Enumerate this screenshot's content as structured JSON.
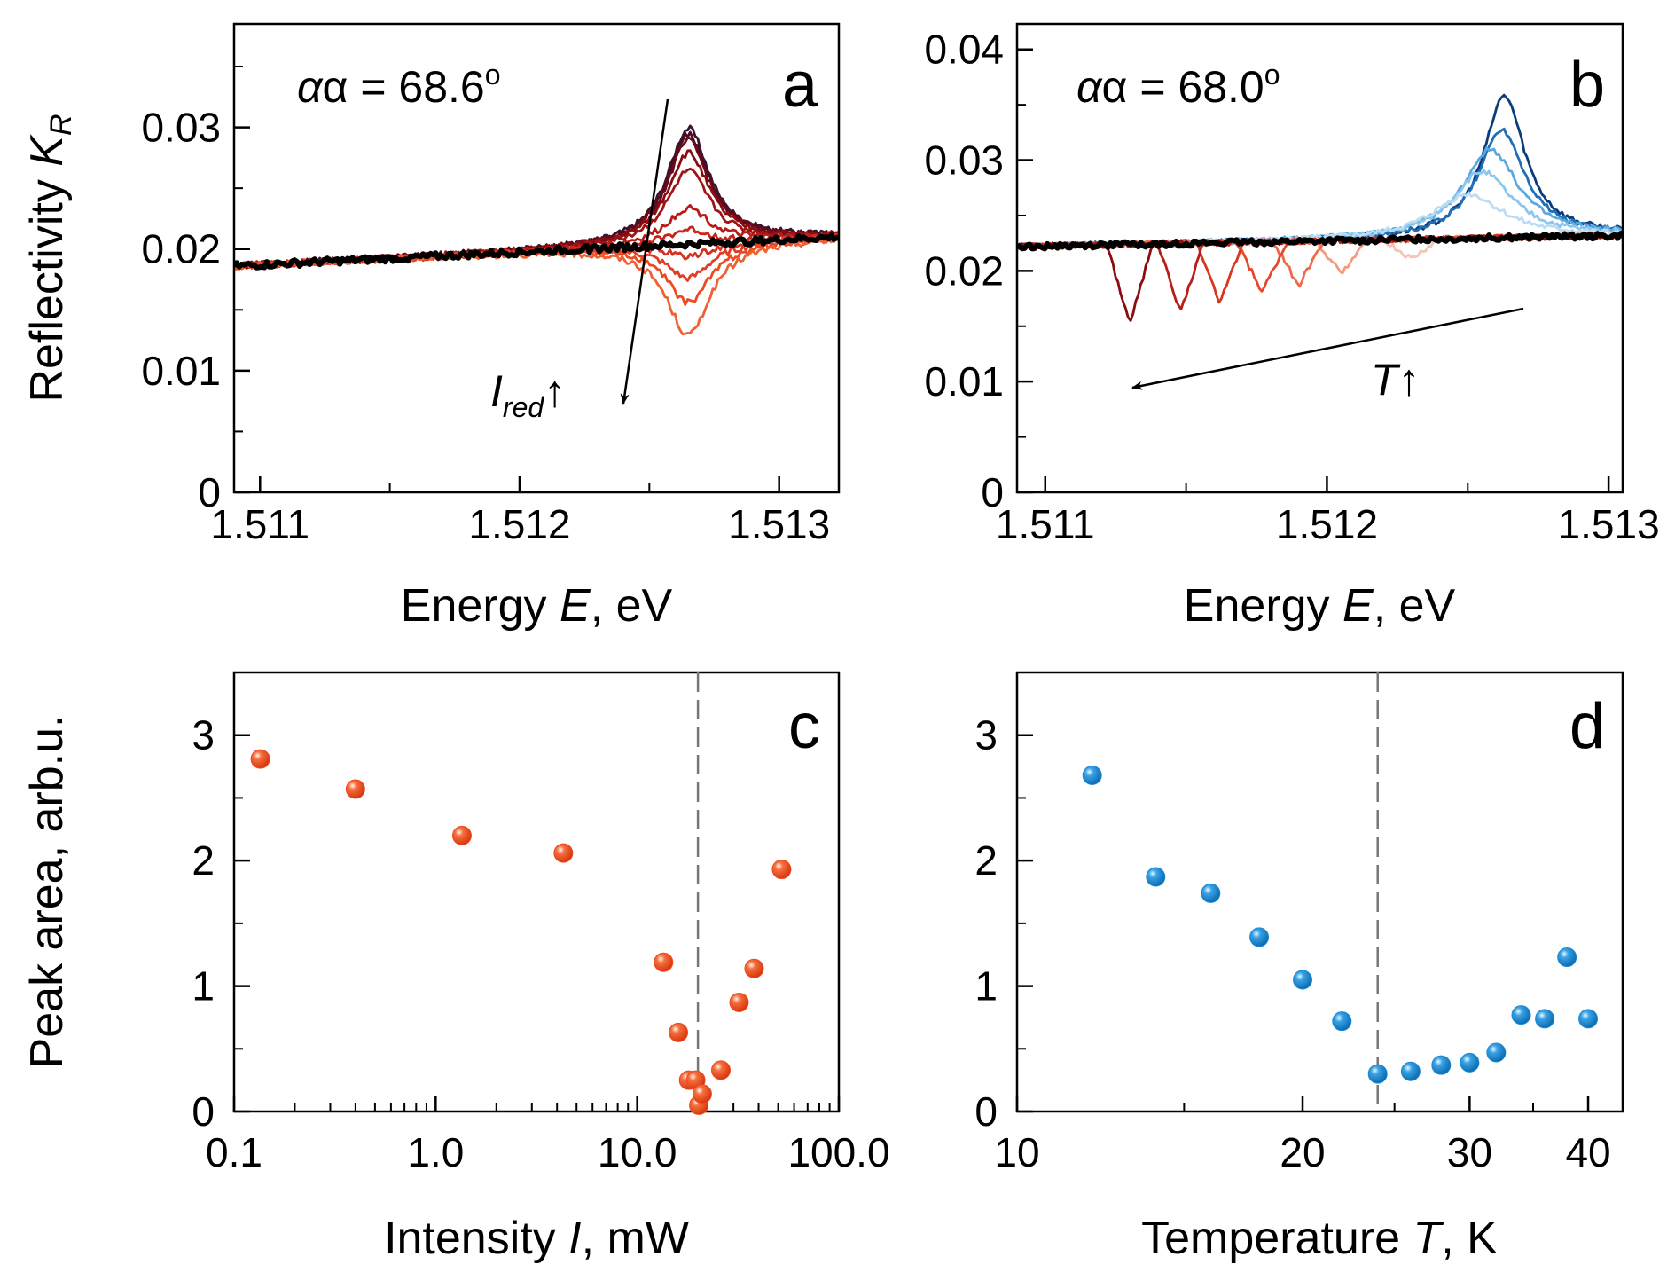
{
  "chart_data": [
    {
      "panel": "a",
      "type": "line",
      "annotation": "α = 68.6",
      "annotation_sup": "o",
      "arrow_label_main": "I",
      "arrow_label_sub": "red",
      "arrow_label_arrow": "↑",
      "xlabel_pre": "Energy ",
      "xlabel_var": "E",
      "xlabel_post": ", eV",
      "ylabel_pre": "Reflectivity ",
      "ylabel_var": "K",
      "ylabel_sub": "R",
      "xlim": [
        1.5109,
        1.51323
      ],
      "ylim": [
        0,
        0.0385
      ],
      "xticks": [
        1.511,
        1.512,
        1.513
      ],
      "xtick_labels": [
        "1.511",
        "1.512",
        "1.513"
      ],
      "yticks": [
        0,
        0.01,
        0.02,
        0.03
      ],
      "ytick_labels": [
        "0",
        "0.01",
        "0.02",
        "0.03"
      ],
      "base": {
        "x0": 1.5109,
        "x1": 1.51323,
        "y0": 0.0186,
        "y1": 0.021
      },
      "peak_center": 1.51265,
      "peak_width": 0.0001,
      "series": [
        {
          "amp": 0.0095,
          "color": "#3a1232"
        },
        {
          "amp": 0.009,
          "color": "#4a0f22"
        },
        {
          "amp": 0.0085,
          "color": "#6b0a16"
        },
        {
          "amp": 0.0075,
          "color": "#8a0c12"
        },
        {
          "amp": 0.006,
          "color": "#a11414"
        },
        {
          "amp": 0.003,
          "color": "#b81c18"
        },
        {
          "amp": 0.0012,
          "color": "#c8241c"
        },
        {
          "amp": -0.001,
          "color": "#d63020"
        },
        {
          "amp": -0.0028,
          "color": "#e23c22"
        },
        {
          "amp": -0.0048,
          "color": "#ec4a22"
        },
        {
          "amp": -0.0075,
          "color": "#f06030"
        },
        {
          "amp": 0.0,
          "color": "#000000",
          "bold": true
        }
      ]
    },
    {
      "panel": "b",
      "type": "line",
      "annotation": "α = 68.0",
      "annotation_sup": "o",
      "arrow_label_main": "T",
      "arrow_label_arrow": "↑",
      "xlabel_pre": "Energy ",
      "xlabel_var": "E",
      "xlabel_post": ", eV",
      "xlim": [
        1.5109,
        1.51305
      ],
      "ylim": [
        0,
        0.0423
      ],
      "xticks": [
        1.511,
        1.512,
        1.513
      ],
      "xtick_labels": [
        "1.511",
        "1.512",
        "1.513"
      ],
      "yticks": [
        0,
        0.01,
        0.02,
        0.03,
        0.04
      ],
      "ytick_labels": [
        "0",
        "0.01",
        "0.02",
        "0.03",
        "0.04"
      ],
      "base": {
        "x0": 1.5109,
        "x1": 1.51305,
        "y0": 0.0222,
        "y1": 0.0232
      },
      "series": [
        {
          "center": 1.51263,
          "amp": 0.0128,
          "width": 9e-05,
          "color": "#0a3d7a"
        },
        {
          "center": 1.51262,
          "amp": 0.0098,
          "width": 0.0001,
          "color": "#1f6fb8"
        },
        {
          "center": 1.51258,
          "amp": 0.008,
          "width": 0.00012,
          "color": "#5aa8e0"
        },
        {
          "center": 1.51255,
          "amp": 0.006,
          "width": 0.00013,
          "color": "#8cc6ee"
        },
        {
          "center": 1.5125,
          "amp": 0.004,
          "width": 0.00015,
          "color": "#bcdcf4"
        },
        {
          "center": 1.5123,
          "amp": -0.0018,
          "width": 0.0001,
          "color": "#f6c4b4"
        },
        {
          "center": 1.51205,
          "amp": -0.003,
          "width": 9e-05,
          "color": "#f39a80"
        },
        {
          "center": 1.5119,
          "amp": -0.004,
          "width": 9e-05,
          "color": "#ee6a4a"
        },
        {
          "center": 1.51177,
          "amp": -0.0045,
          "width": 9e-05,
          "color": "#e64a2e"
        },
        {
          "center": 1.51162,
          "amp": -0.0055,
          "width": 8e-05,
          "color": "#d8361f"
        },
        {
          "center": 1.51148,
          "amp": -0.0063,
          "width": 8e-05,
          "color": "#b81e16"
        },
        {
          "center": 1.5113,
          "amp": -0.0073,
          "width": 8e-05,
          "color": "#8c0c10"
        },
        {
          "center": 1.5122,
          "amp": 0.0,
          "width": 0.0001,
          "color": "#000000",
          "bold": true
        }
      ]
    },
    {
      "panel": "c",
      "type": "scatter",
      "xscale": "log",
      "xlabel_pre": "Intensity ",
      "xlabel_var": "I",
      "xlabel_post": ", mW",
      "ylabel": "Peak area, arb.u.",
      "xlim": [
        0.1,
        100
      ],
      "ylim": [
        0,
        3.5
      ],
      "xticks": [
        0.1,
        1,
        10,
        100
      ],
      "xtick_labels": [
        "0.1",
        "1.0",
        "10.0",
        "100.0"
      ],
      "yticks": [
        0,
        1,
        2,
        3
      ],
      "ytick_labels": [
        "0",
        "1",
        "2",
        "3"
      ],
      "vline": 20,
      "color": "#f04a22",
      "points": [
        {
          "x": 0.135,
          "y": 2.81
        },
        {
          "x": 0.4,
          "y": 2.57
        },
        {
          "x": 1.35,
          "y": 2.2
        },
        {
          "x": 4.3,
          "y": 2.06
        },
        {
          "x": 13.5,
          "y": 1.19
        },
        {
          "x": 16.0,
          "y": 0.63
        },
        {
          "x": 18.0,
          "y": 0.25
        },
        {
          "x": 19.5,
          "y": 0.25
        },
        {
          "x": 20.2,
          "y": 0.05
        },
        {
          "x": 21.0,
          "y": 0.14
        },
        {
          "x": 26.0,
          "y": 0.33
        },
        {
          "x": 32.0,
          "y": 0.87
        },
        {
          "x": 38.0,
          "y": 1.14
        },
        {
          "x": 52.0,
          "y": 1.93
        }
      ]
    },
    {
      "panel": "d",
      "type": "scatter",
      "xscale": "log",
      "xlabel_pre": "Temperature ",
      "xlabel_var": "T",
      "xlabel_post": ", K",
      "xlim": [
        10,
        43.5
      ],
      "ylim": [
        0,
        3.5
      ],
      "xticks": [
        10,
        20,
        30,
        40
      ],
      "xtick_labels": [
        "10",
        "20",
        "30",
        "40"
      ],
      "yticks": [
        0,
        1,
        2,
        3
      ],
      "ytick_labels": [
        "0",
        "1",
        "2",
        "3"
      ],
      "vline": 24,
      "color": "#1a8ad4",
      "points": [
        {
          "x": 12,
          "y": 2.68
        },
        {
          "x": 14,
          "y": 1.87
        },
        {
          "x": 16,
          "y": 1.74
        },
        {
          "x": 18,
          "y": 1.39
        },
        {
          "x": 20,
          "y": 1.05
        },
        {
          "x": 22,
          "y": 0.72
        },
        {
          "x": 24,
          "y": 0.3
        },
        {
          "x": 26,
          "y": 0.32
        },
        {
          "x": 28,
          "y": 0.37
        },
        {
          "x": 30,
          "y": 0.39
        },
        {
          "x": 32,
          "y": 0.47
        },
        {
          "x": 34,
          "y": 0.77
        },
        {
          "x": 36,
          "y": 0.74
        },
        {
          "x": 38,
          "y": 1.23
        },
        {
          "x": 40,
          "y": 0.74
        }
      ]
    }
  ]
}
